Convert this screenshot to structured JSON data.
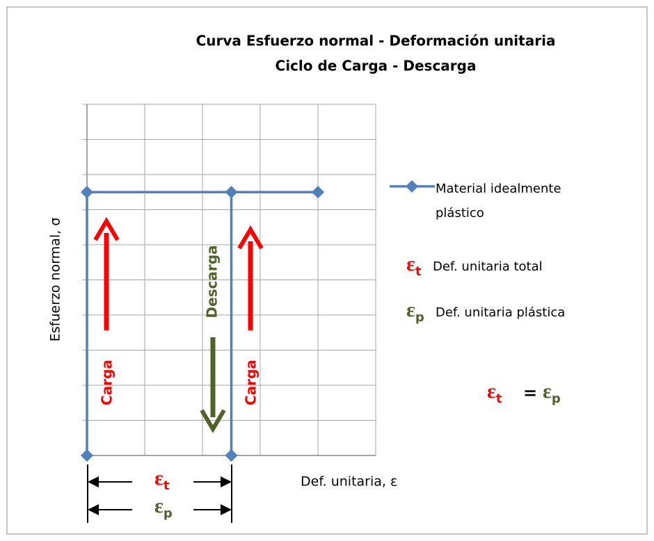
{
  "chart_data": {
    "type": "line",
    "title": "Curva Esfuerzo normal - Deformación unitaria",
    "subtitle": "Ciclo de Carga - Descarga",
    "xlabel": "Def. unitaria, ε",
    "ylabel": "Esfuerzo normal, σ",
    "xlim": [
      0,
      5
    ],
    "ylim": [
      0,
      10
    ],
    "xticks": [
      0,
      1,
      2,
      3,
      4,
      5
    ],
    "yticks": [
      0,
      1,
      2,
      3,
      4,
      5,
      6,
      7,
      8,
      9,
      10
    ],
    "grid": true,
    "legend": "right",
    "series": [
      {
        "name": "Material idealmente plástico",
        "color": "#4f81bd",
        "x": [
          0,
          0,
          4,
          2.5,
          2.5
        ],
        "values": [
          0,
          7.5,
          7.5,
          7.5,
          0
        ]
      }
    ],
    "annotations": {
      "load_left": {
        "text": "Carga",
        "color": "#ff0000"
      },
      "load_right": {
        "text": "Carga",
        "color": "#ff0000"
      },
      "unload": {
        "text": "Descarga",
        "color": "#4f6228"
      },
      "strain_total": {
        "symbol": "ε",
        "sub": "t",
        "color": "#ff0000",
        "desc": "Def. unitaria total"
      },
      "strain_plastic": {
        "symbol": "ε",
        "sub": "p",
        "color": "#4f6228",
        "desc": "Def. unitaria plástica"
      },
      "equation_sign": "="
    }
  }
}
